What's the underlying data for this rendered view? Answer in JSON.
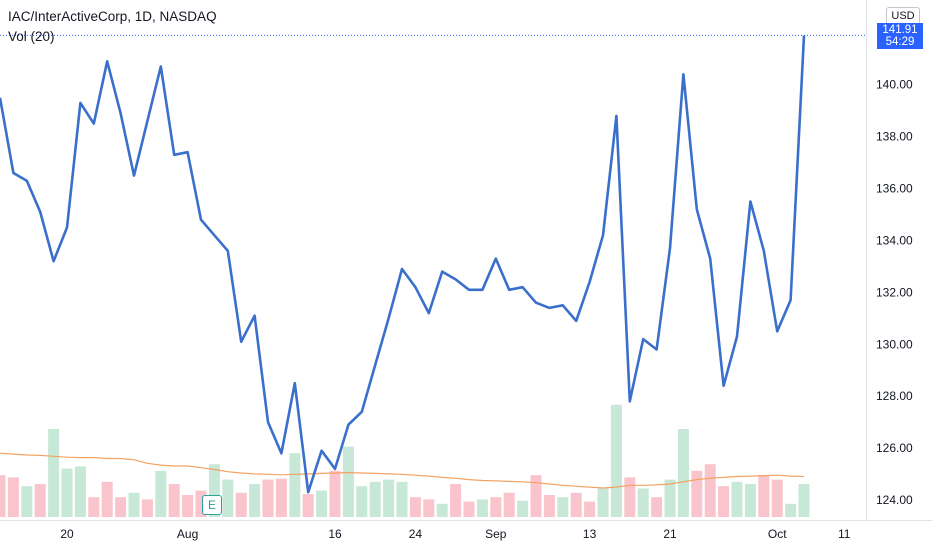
{
  "header": {
    "title": "IAC/InterActiveCorp, 1D, NASDAQ",
    "volume_label": "Vol (20)"
  },
  "price_axis": {
    "currency": "USD",
    "last_price": "141.91",
    "countdown": "54:29"
  },
  "earnings_marker": {
    "label": "E"
  },
  "colors": {
    "line": "#3a6fcb",
    "volume_up": "#c7e8d6",
    "volume_down": "#f9c4cb",
    "volume_ma": "#f4a261",
    "price_tag": "#2962ff",
    "axis_text": "#131722"
  },
  "chart_data": {
    "type": "line",
    "title": "IAC/InterActiveCorp, 1D, NASDAQ",
    "xlabel": "",
    "ylabel": "",
    "ylim": [
      123.5,
      142.3
    ],
    "y_ticks": [
      124,
      126,
      128,
      130,
      132,
      134,
      136,
      138,
      140
    ],
    "y_tick_labels": [
      "124.00",
      "126.00",
      "128.00",
      "130.00",
      "132.00",
      "134.00",
      "136.00",
      "138.00",
      "140.00"
    ],
    "x_tick_labels": [
      {
        "label": "20",
        "index": 5
      },
      {
        "label": "Aug",
        "index": 14
      },
      {
        "label": "16",
        "index": 25
      },
      {
        "label": "24",
        "index": 31
      },
      {
        "label": "Sep",
        "index": 37
      },
      {
        "label": "13",
        "index": 44
      },
      {
        "label": "21",
        "index": 50
      },
      {
        "label": "Oct",
        "index": 58
      },
      {
        "label": "11",
        "index": 63
      }
    ],
    "grid": false,
    "series": [
      {
        "values": [
          139.5,
          136.6,
          136.3,
          135.1,
          133.2,
          134.5,
          139.3,
          138.5,
          140.9,
          138.9,
          136.5,
          138.6,
          140.7,
          137.3,
          137.4,
          134.8,
          134.2,
          133.6,
          130.1,
          131.1,
          127.0,
          125.8,
          128.5,
          124.3,
          125.9,
          125.2,
          126.9,
          127.4,
          129.2,
          131.0,
          132.9,
          132.2,
          131.2,
          132.8,
          132.5,
          132.1,
          132.1,
          133.3,
          132.1,
          132.2,
          131.6,
          131.4,
          131.5,
          130.9,
          132.4,
          134.2,
          138.8,
          127.8,
          130.2,
          129.8,
          133.7,
          140.4,
          135.2,
          133.3,
          128.4,
          130.3,
          135.5,
          133.6,
          130.5,
          131.7,
          141.9
        ]
      }
    ],
    "volume": {
      "name": "Vol (20)",
      "values": [
        0.95,
        0.9,
        0.7,
        0.75,
        2.0,
        1.1,
        1.15,
        0.45,
        0.8,
        0.45,
        0.55,
        0.4,
        1.05,
        0.75,
        0.5,
        0.6,
        1.2,
        0.85,
        0.55,
        0.75,
        0.85,
        0.87,
        1.45,
        0.52,
        0.6,
        1.05,
        1.6,
        0.7,
        0.8,
        0.85,
        0.8,
        0.45,
        0.4,
        0.3,
        0.75,
        0.35,
        0.4,
        0.45,
        0.55,
        0.37,
        0.95,
        0.5,
        0.45,
        0.55,
        0.35,
        0.65,
        2.55,
        0.9,
        0.65,
        0.45,
        0.85,
        2.0,
        1.05,
        1.2,
        0.7,
        0.8,
        0.75,
        0.95,
        0.85,
        0.3,
        0.75
      ],
      "up": [
        false,
        false,
        true,
        false,
        true,
        true,
        true,
        false,
        false,
        false,
        true,
        false,
        true,
        false,
        false,
        false,
        true,
        true,
        false,
        true,
        false,
        false,
        true,
        false,
        true,
        false,
        true,
        true,
        true,
        true,
        true,
        false,
        false,
        true,
        false,
        false,
        true,
        false,
        false,
        true,
        false,
        false,
        true,
        false,
        false,
        true,
        true,
        false,
        true,
        false,
        true,
        true,
        false,
        false,
        false,
        true,
        true,
        false,
        false,
        true,
        true
      ],
      "ma": [
        1.45,
        1.43,
        1.41,
        1.4,
        1.38,
        1.36,
        1.35,
        1.35,
        1.33,
        1.33,
        1.3,
        1.22,
        1.18,
        1.16,
        1.16,
        1.12,
        1.08,
        1.03,
        1.0,
        0.98,
        0.97,
        0.96,
        0.97,
        0.98,
        0.99,
        1.0,
        1.01,
        1.0,
        0.99,
        0.98,
        0.97,
        0.95,
        0.93,
        0.9,
        0.88,
        0.85,
        0.83,
        0.82,
        0.81,
        0.8,
        0.78,
        0.75,
        0.72,
        0.7,
        0.68,
        0.66,
        0.68,
        0.72,
        0.72,
        0.73,
        0.75,
        0.8,
        0.85,
        0.88,
        0.9,
        0.92,
        0.93,
        0.94,
        0.95,
        0.93,
        0.92
      ]
    }
  }
}
